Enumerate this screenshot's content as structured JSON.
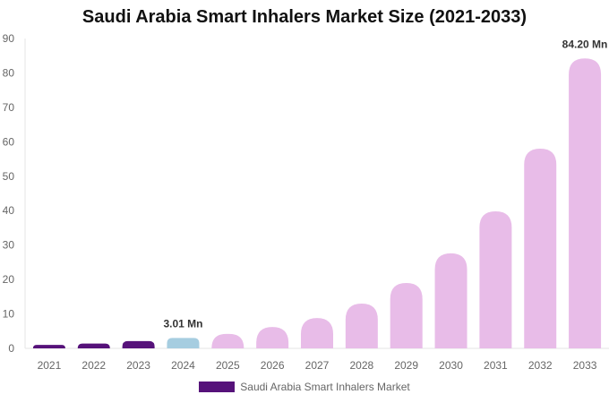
{
  "chart_data": {
    "type": "bar",
    "title": "Saudi Arabia Smart Inhalers Market Size (2021-2033)",
    "categories": [
      "2021",
      "2022",
      "2023",
      "2024",
      "2025",
      "2026",
      "2027",
      "2028",
      "2029",
      "2030",
      "2031",
      "2032",
      "2033"
    ],
    "series": [
      {
        "name": "Saudi Arabia Smart Inhalers Market",
        "values": [
          1.0,
          1.4,
          2.1,
          3.01,
          4.2,
          6.2,
          8.8,
          13.0,
          19.0,
          27.6,
          39.8,
          58.0,
          84.2
        ]
      }
    ],
    "data_labels": {
      "3": "3.01 Mn",
      "12": "84.20 Mn"
    },
    "ylim": [
      0,
      90
    ],
    "yticks": [
      0,
      10,
      20,
      30,
      40,
      50,
      60,
      70,
      80,
      90
    ],
    "xlabel": "",
    "ylabel": "",
    "grid": false,
    "legend_position": "bottom",
    "colors": {
      "historical": "#56127a",
      "base_year": "#a6cde0",
      "forecast": "#e8bce8"
    }
  }
}
